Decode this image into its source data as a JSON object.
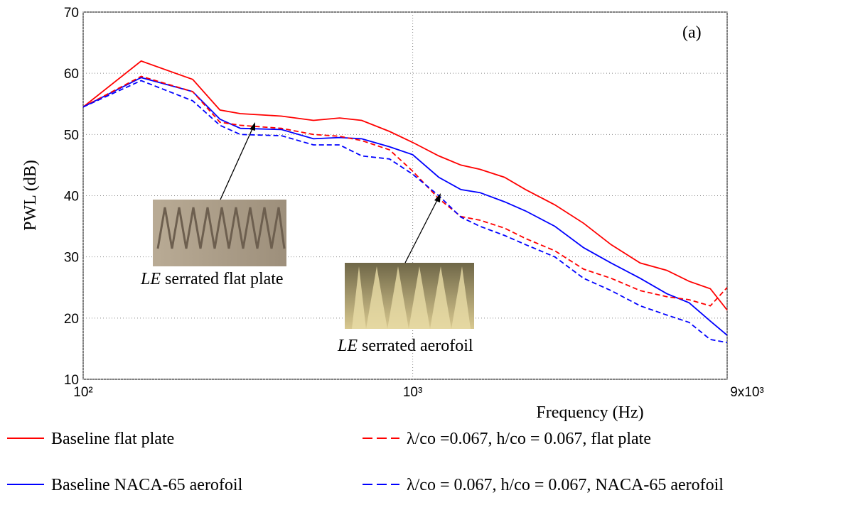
{
  "chart_data": {
    "type": "line",
    "xlabel": "Frequency (Hz)",
    "ylabel": "PWL (dB)",
    "annotation": "(a)",
    "image_captions": [
      {
        "italic": "LE",
        "text": "serrated flat plate"
      },
      {
        "italic": "LE",
        "text": "serrated aerofoil"
      }
    ],
    "x": [
      100,
      150,
      215,
      260,
      300,
      400,
      500,
      600,
      700,
      850,
      1000,
      1200,
      1400,
      1600,
      1900,
      2200,
      2700,
      3300,
      4000,
      4900,
      5900,
      6900,
      8000,
      9000
    ],
    "xscale": "log",
    "xlim": [
      100,
      9000
    ],
    "xticks": [
      {
        "value": 100,
        "label": "10²"
      },
      {
        "value": 1000,
        "label": "10³"
      },
      {
        "value": 9000,
        "label": "9x10³"
      }
    ],
    "ylim": [
      10,
      70
    ],
    "yticks": [
      10,
      20,
      30,
      40,
      50,
      60,
      70
    ],
    "grid": true,
    "series": [
      {
        "name": "Baseline flat plate",
        "color": "#ff0000",
        "dash": false,
        "values": [
          54.5,
          62,
          59,
          54,
          53.4,
          53,
          52.3,
          52.7,
          52.3,
          50.5,
          48.7,
          46.5,
          45,
          44.3,
          43,
          41,
          38.5,
          35.5,
          32,
          29,
          27.8,
          26,
          24.8,
          21.3
        ]
      },
      {
        "name": "Baseline NACA-65 aerofoil",
        "color": "#0000ff",
        "dash": false,
        "values": [
          54.5,
          59.3,
          57,
          52.5,
          51,
          50.8,
          49.3,
          49.5,
          49.3,
          48,
          46.7,
          43,
          41,
          40.5,
          39,
          37.5,
          35,
          31.5,
          29,
          26.5,
          24,
          22.5,
          19.5,
          17.2
        ]
      },
      {
        "name": "λ/co =0.067, h/co = 0.067, flat plate",
        "color": "#ff0000",
        "dash": true,
        "values": [
          54.5,
          59.5,
          57,
          52,
          51.5,
          51,
          50,
          49.7,
          49,
          47.5,
          44,
          39.5,
          36.6,
          36,
          34.7,
          33,
          31,
          28,
          26.5,
          24.5,
          23.5,
          23,
          22,
          25
        ]
      },
      {
        "name": "λ/co = 0.067, h/co = 0.067, NACA-65 aerofoil",
        "color": "#0000ff",
        "dash": true,
        "values": [
          54.5,
          58.8,
          55.5,
          51.5,
          50,
          49.8,
          48.3,
          48.3,
          46.5,
          46,
          43.5,
          40,
          36.5,
          35,
          33.5,
          32,
          30,
          26.5,
          24.5,
          22,
          20.5,
          19.3,
          16.5,
          16
        ]
      }
    ]
  }
}
